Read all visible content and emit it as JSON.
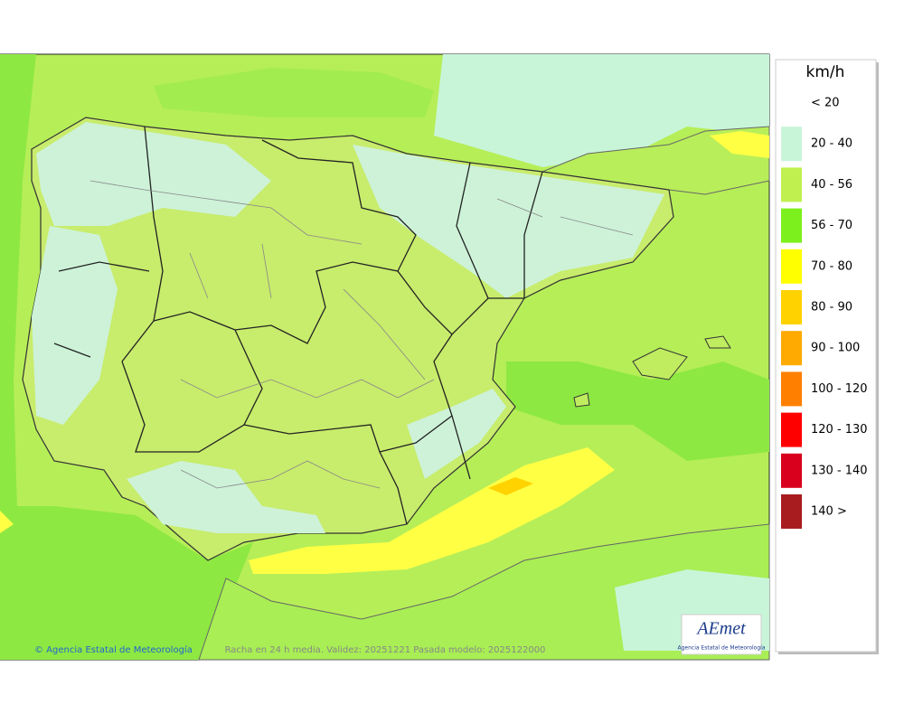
{
  "legend": {
    "title": "km/h",
    "items": [
      {
        "label": "< 20",
        "color": "#ffffff"
      },
      {
        "label": "20 - 40",
        "color": "#c8f5d8"
      },
      {
        "label": "40 - 56",
        "color": "#c0f050"
      },
      {
        "label": "56 - 70",
        "color": "#7cf01c"
      },
      {
        "label": "70 - 80",
        "color": "#ffff00"
      },
      {
        "label": "80 - 90",
        "color": "#ffd200"
      },
      {
        "label": "90 - 100",
        "color": "#ffaa00"
      },
      {
        "label": "100 - 120",
        "color": "#ff8000"
      },
      {
        "label": "120 - 130",
        "color": "#ff0000"
      },
      {
        "label": "130 - 140",
        "color": "#d8001c"
      },
      {
        "label": "140 >",
        "color": "#a81c20"
      }
    ]
  },
  "footer": {
    "credit": "© Agencia Estatal de Meteorología",
    "caption": "Racha en 24 h media. Validez: 20251221 Pasada modelo: 2025122000"
  },
  "logo": {
    "name": "AEmet",
    "subtitle": "Agencia Estatal de Meteorología"
  }
}
